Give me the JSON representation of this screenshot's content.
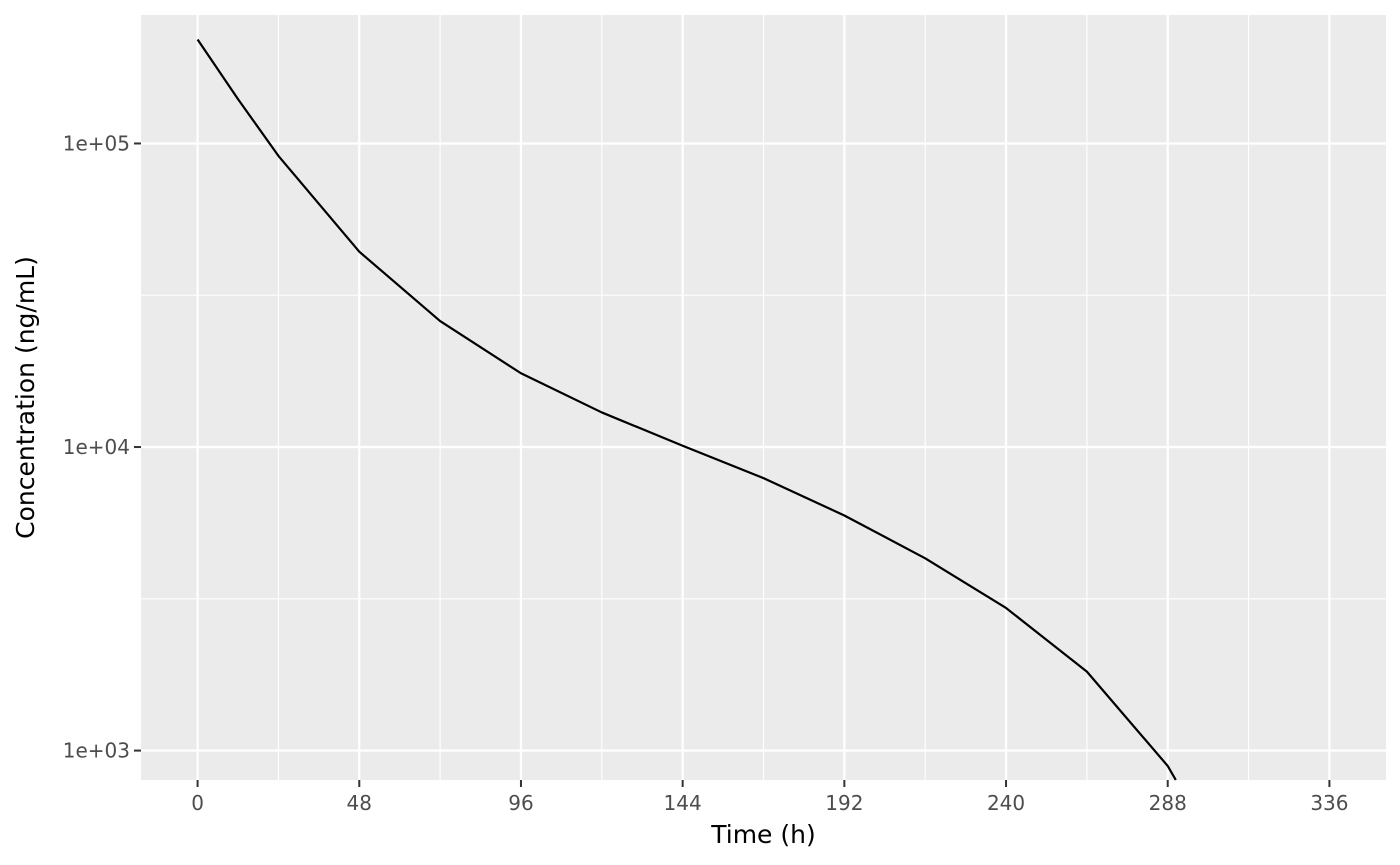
{
  "chart_data": {
    "type": "line",
    "title": "",
    "xlabel": "Time (h)",
    "ylabel": "Concentration (ng/mL)",
    "xlim": [
      -16.8,
      352.8
    ],
    "ylim": [
      800,
      265000
    ],
    "y_scale": "log10",
    "grid": true,
    "legend": "none",
    "x_ticks": [
      0,
      48,
      96,
      144,
      192,
      240,
      288,
      336
    ],
    "x_tick_labels": [
      "0",
      "48",
      "96",
      "144",
      "192",
      "240",
      "288",
      "336"
    ],
    "y_ticks": [
      1000,
      10000,
      100000
    ],
    "y_tick_labels": [
      "1e+03",
      "1e+04",
      "1e+05"
    ],
    "series": [
      {
        "line_color": "#000000",
        "x": [
          0,
          12,
          24,
          48,
          72,
          96,
          120,
          144,
          168,
          192,
          216,
          240,
          264,
          288,
          290.4
        ],
        "y": [
          220000,
          140000,
          91000,
          44000,
          26000,
          17500,
          13000,
          10100,
          7900,
          5950,
          4300,
          2950,
          1820,
          890,
          800
        ]
      }
    ],
    "colors": {
      "panel_background": "#ebebeb",
      "grid_major": "#ffffff",
      "grid_minor": "#ffffff",
      "tick_text": "#4d4d4d",
      "tick_mark": "#333333"
    }
  }
}
